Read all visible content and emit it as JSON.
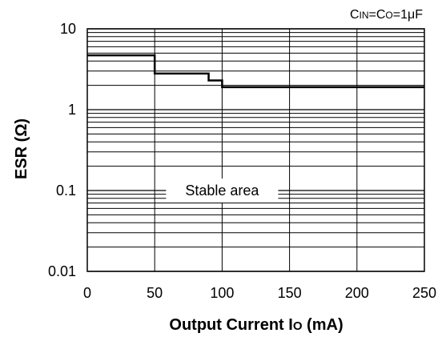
{
  "chart_data": {
    "type": "line",
    "title": "",
    "annotation_conditions": "CIN=CO=1μF",
    "conditions_parts": {
      "c1": "C",
      "s1": "IN",
      "eq1": "=",
      "c2": "C",
      "s2": "O",
      "rest": "=1μF"
    },
    "xlabel": "Output Current Io (mA)",
    "xlabel_parts": {
      "main": "Output Current I",
      "sub": "O",
      "tail": " (mA)"
    },
    "ylabel": "ESR (Ω)",
    "xlim": [
      0,
      250
    ],
    "ylim": [
      0.01,
      10
    ],
    "yscale": "log",
    "grid": true,
    "x_ticks": [
      "0",
      "50",
      "100",
      "150",
      "200",
      "250"
    ],
    "y_ticks": [
      "0.01",
      "0.1",
      "1",
      "10"
    ],
    "series": [
      {
        "x": [
          0,
          50,
          50,
          90,
          90,
          100,
          100,
          250
        ],
        "y": [
          4.7,
          4.7,
          2.8,
          2.8,
          2.3,
          2.3,
          1.9,
          1.9
        ]
      }
    ],
    "region_label": "Stable area"
  }
}
